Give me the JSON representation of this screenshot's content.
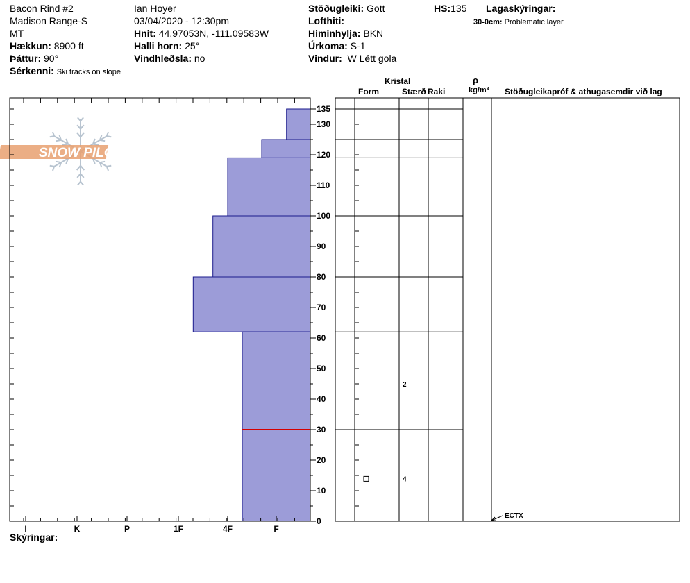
{
  "header": {
    "col1": {
      "site": "Bacon Rind #2",
      "range": "Madison Range-S",
      "state": "MT",
      "elevation_label": "Hækkun:",
      "elevation_value": "8900 ft",
      "aspect_label": "Þáttur:",
      "aspect_value": "90°",
      "features_label": "Sérkenni:",
      "features_value": "Ski tracks on slope"
    },
    "col2": {
      "observer": "Ian Hoyer",
      "datetime": "03/04/2020 - 12:30pm",
      "coords_label": "Hnit:",
      "coords_value": "44.97053N, -111.09583W",
      "slope_label": "Halli horn:",
      "slope_value": "25°",
      "wind_loading_label": "Vindhleðsla:",
      "wind_loading_value": "no"
    },
    "col3": {
      "stability_label": "Stöðugleiki:",
      "stability_value": "Gott",
      "air_temp_label": "Lofthiti:",
      "sky_label": "Himinhylja:",
      "sky_value": "BKN",
      "precip_label": "Úrkoma:",
      "precip_value": "S-1",
      "wind_label": "Vindur:",
      "wind_value": "W Létt gola"
    },
    "col4": {
      "hs_label": "HS:",
      "hs_value": "135",
      "layer_notes_label": "Lagaskýringar:",
      "layer_note_depth": "30-0cm:",
      "layer_note_text": "Problematic layer"
    }
  },
  "table_headers": {
    "crystal": "Kristal",
    "form": "Form",
    "size": "Stærð",
    "moisture": "Raki",
    "rho": "ρ",
    "density_unit": "kg/m³",
    "tests": "Stöðugleikapróf & athugasemdir við lag"
  },
  "footer": {
    "legend_label": "Skýringar:"
  },
  "chart_data": {
    "type": "bar",
    "hardness_categories": [
      "I",
      "K",
      "P",
      "1F",
      "4F",
      "F"
    ],
    "y_ticks": [
      0,
      10,
      20,
      30,
      40,
      50,
      60,
      70,
      80,
      90,
      100,
      110,
      120,
      130,
      135
    ],
    "ylim": [
      0,
      135
    ],
    "hs": 135,
    "hardness_profile": [
      {
        "top": 135,
        "bottom": 125,
        "hardness": 0.7
      },
      {
        "top": 125,
        "bottom": 119,
        "hardness": 1.3
      },
      {
        "top": 119,
        "bottom": 100,
        "hardness": 2.0
      },
      {
        "top": 100,
        "bottom": 80,
        "hardness": 2.3
      },
      {
        "top": 80,
        "bottom": 62,
        "hardness": 2.7
      },
      {
        "top": 62,
        "bottom": 0,
        "hardness": 1.7
      }
    ],
    "layer_boundaries": [
      135,
      125,
      119,
      100,
      80,
      62,
      30
    ],
    "problem_layer_depth": 30,
    "crystal_obs": [
      {
        "depth": 45,
        "size": "2",
        "form": ""
      },
      {
        "depth": 14,
        "size": "4",
        "form": "square"
      }
    ],
    "test_results": [
      {
        "depth": 0,
        "result": "ECTX"
      }
    ],
    "colors": {
      "hardness_fill": "#9c9cd8",
      "hardness_stroke": "#1a1a8c",
      "problem_layer": "#d40000",
      "logo_orange": "#e8a070",
      "logo_flake": "#b8c4d0"
    }
  }
}
